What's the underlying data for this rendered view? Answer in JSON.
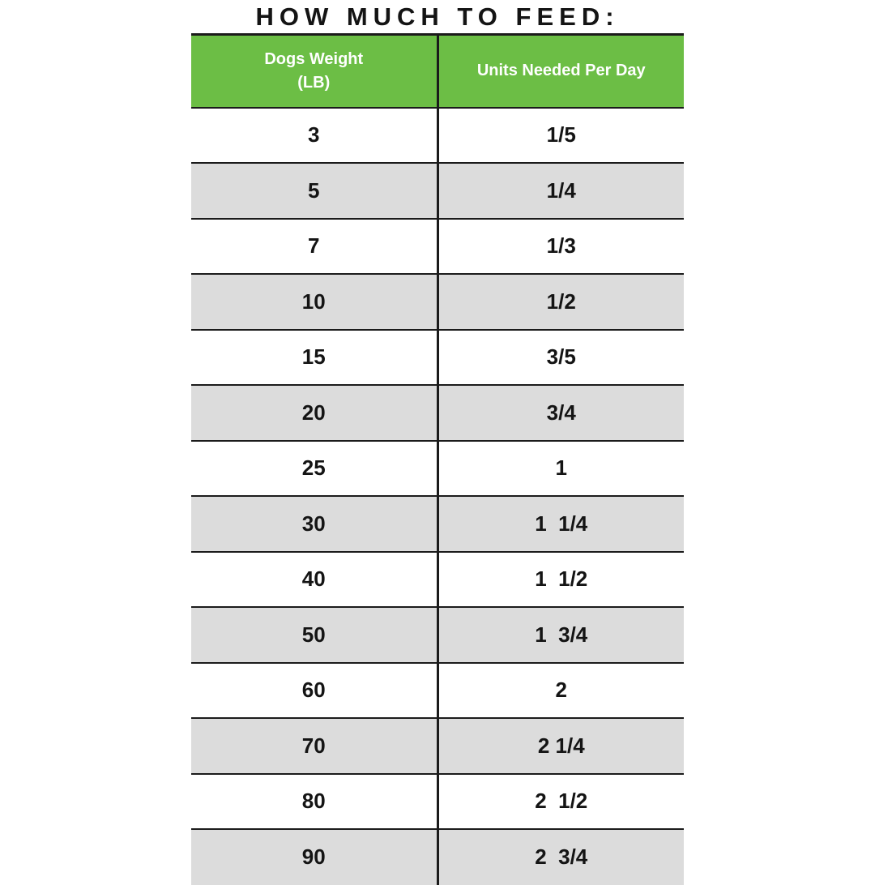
{
  "title": "HOW MUCH TO FEED:",
  "table": {
    "headers": {
      "col1_line1": "Dogs Weight",
      "col1_line2": "(LB)",
      "col2": "Units Needed Per Day"
    },
    "rows": [
      {
        "weight": "3",
        "units": "1/5"
      },
      {
        "weight": "5",
        "units": "1/4"
      },
      {
        "weight": "7",
        "units": "1/3"
      },
      {
        "weight": "10",
        "units": "1/2"
      },
      {
        "weight": "15",
        "units": "3/5"
      },
      {
        "weight": "20",
        "units": "3/4"
      },
      {
        "weight": "25",
        "units": "1"
      },
      {
        "weight": "30",
        "units": "1  1/4"
      },
      {
        "weight": "40",
        "units": "1  1/2"
      },
      {
        "weight": "50",
        "units": "1  3/4"
      },
      {
        "weight": "60",
        "units": "2"
      },
      {
        "weight": "70",
        "units": "2 1/4"
      },
      {
        "weight": "80",
        "units": "2  1/2"
      },
      {
        "weight": "90",
        "units": "2  3/4"
      }
    ],
    "colors": {
      "header_bg": "#6CBE45",
      "row_alt_bg": "#DCDCDC",
      "border_ink": "#1B1B1B"
    }
  },
  "chart_data": {
    "type": "table",
    "title": "HOW MUCH TO FEED:",
    "columns": [
      "Dogs Weight (LB)",
      "Units Needed Per Day"
    ],
    "categories": [
      3,
      5,
      7,
      10,
      15,
      20,
      25,
      30,
      40,
      50,
      60,
      70,
      80,
      90
    ],
    "values": [
      "1/5",
      "1/4",
      "1/3",
      "1/2",
      "3/5",
      "3/4",
      "1",
      "1 1/4",
      "1 1/2",
      "1 3/4",
      "2",
      "2 1/4",
      "2 1/2",
      "2 3/4"
    ],
    "layout_hints": {
      "header_bg": "#6CBE45",
      "alt_row_bg": "#DCDCDC",
      "zebra_striping": true,
      "last_row_clipped": true
    }
  }
}
